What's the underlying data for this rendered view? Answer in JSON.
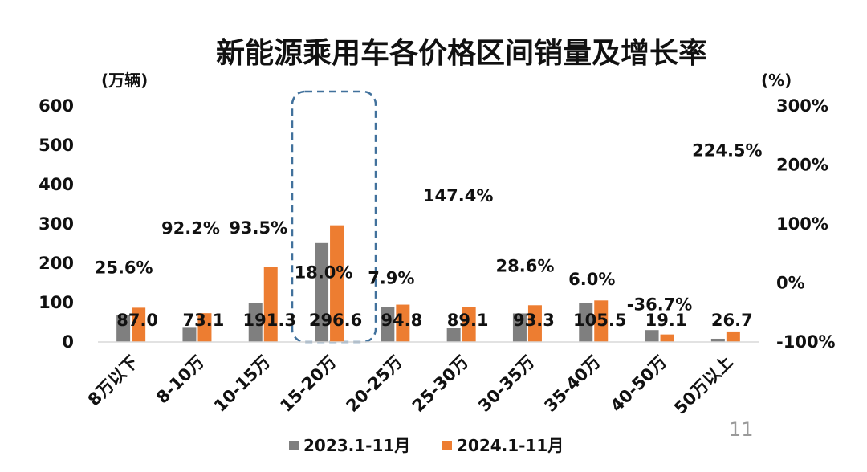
{
  "page_number": "11",
  "colors": {
    "series_2023": "#7f7f7f",
    "series_2024": "#ed7d31",
    "negative_growth": "#e8232a",
    "highlight_box": "#41719c"
  },
  "chart_data": {
    "type": "bar",
    "title": "新能源乘用车各价格区间销量及增长率",
    "ylabel": "(万辆)",
    "y2label": "(%)",
    "ylim": [
      0,
      600
    ],
    "y2lim": [
      -100,
      300
    ],
    "yticks": [
      "0",
      "100",
      "200",
      "300",
      "400",
      "500",
      "600"
    ],
    "y2ticks": [
      "-100%",
      "0%",
      "100%",
      "200%",
      "300%"
    ],
    "categories": [
      "8万以下",
      "8-10万",
      "10-15万",
      "15-20万",
      "20-25万",
      "25-30万",
      "30-35万",
      "35-40万",
      "40-50万",
      "50万以上"
    ],
    "series": [
      {
        "name": "2023.1-11月",
        "values": [
          69.3,
          38.0,
          98.9,
          251.4,
          87.9,
          36.1,
          72.5,
          99.5,
          30.2,
          8.2
        ]
      },
      {
        "name": "2024.1-11月",
        "values": [
          87.0,
          73.1,
          191.3,
          296.6,
          94.8,
          89.1,
          93.3,
          105.5,
          19.1,
          26.7
        ]
      }
    ],
    "data_labels": [
      "87.0",
      "73.1",
      "191.3",
      "296.6",
      "94.8",
      "89.1",
      "93.3",
      "105.5",
      "19.1",
      "26.7"
    ],
    "growth_rate": [
      25.6,
      92.2,
      93.5,
      18.0,
      7.9,
      147.4,
      28.6,
      6.0,
      -36.7,
      224.5
    ],
    "growth_labels": [
      "25.6%",
      "92.2%",
      "93.5%",
      "18.0%",
      "7.9%",
      "147.4%",
      "28.6%",
      "6.0%",
      "-36.7%",
      "224.5%"
    ],
    "highlight_category": "15-20万",
    "legend_position": "bottom",
    "grid": false
  }
}
